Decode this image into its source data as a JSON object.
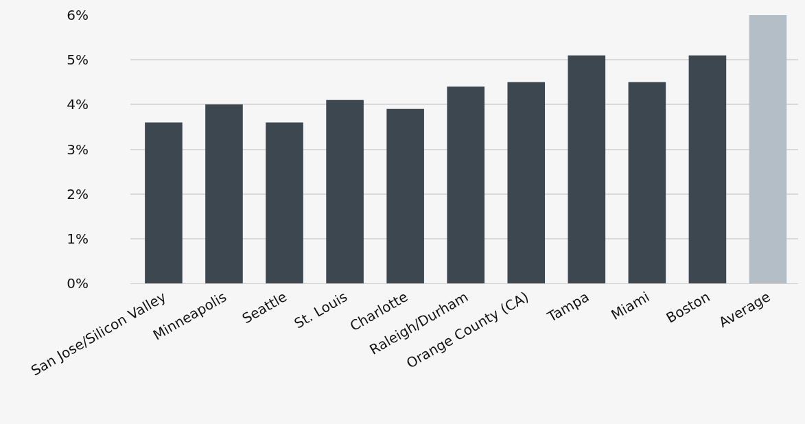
{
  "chart_data": {
    "type": "bar",
    "categories": [
      "San Jose/Silicon Valley",
      "Minneapolis",
      "Seattle",
      "St. Louis",
      "Charlotte",
      "Raleigh/Durham",
      "Orange County (CA)",
      "Tampa",
      "Miami",
      "Boston",
      "Average"
    ],
    "values": [
      3.6,
      4.0,
      3.6,
      4.1,
      3.9,
      4.4,
      4.5,
      5.1,
      4.5,
      5.1,
      6.0
    ],
    "colors": [
      "#3d4750",
      "#3d4750",
      "#3d4750",
      "#3d4750",
      "#3d4750",
      "#3d4750",
      "#3d4750",
      "#3d4750",
      "#3d4750",
      "#3d4750",
      "#b4bec6"
    ],
    "ylim": [
      0,
      6
    ],
    "yticks": [
      {
        "value": 0,
        "label": "0%"
      },
      {
        "value": 1,
        "label": "1%"
      },
      {
        "value": 2,
        "label": "2%"
      },
      {
        "value": 3,
        "label": "3%"
      },
      {
        "value": 4,
        "label": "4%"
      },
      {
        "value": 5,
        "label": "5%"
      },
      {
        "value": 6,
        "label": "6%"
      }
    ],
    "grid": "y"
  }
}
